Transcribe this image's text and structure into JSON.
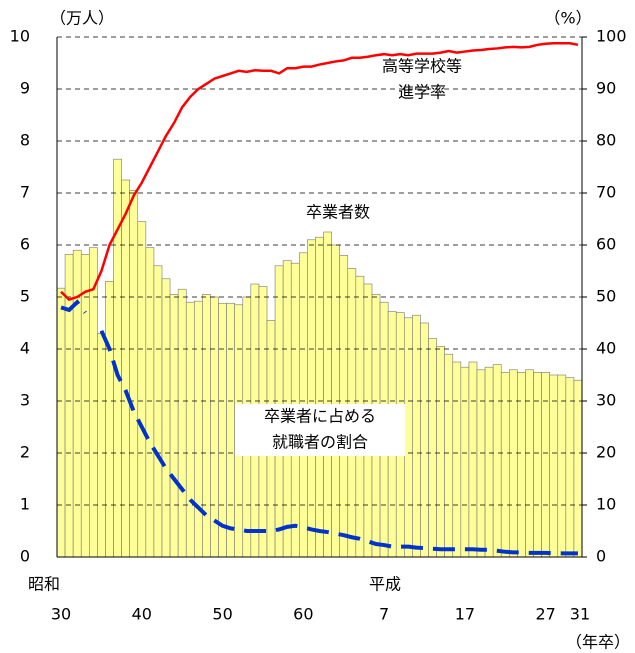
{
  "chart_data": {
    "type": "bar",
    "categories": [
      "30",
      null,
      null,
      null,
      null,
      null,
      null,
      null,
      null,
      null,
      "40",
      null,
      null,
      null,
      null,
      null,
      null,
      null,
      null,
      null,
      "50",
      null,
      null,
      null,
      null,
      null,
      null,
      null,
      null,
      null,
      "60",
      null,
      null,
      null,
      null,
      null,
      null,
      null,
      null,
      null,
      "7",
      null,
      null,
      null,
      null,
      null,
      null,
      null,
      null,
      null,
      "17",
      null,
      null,
      null,
      null,
      null,
      null,
      null,
      null,
      null,
      "27",
      null,
      null,
      null,
      "31"
    ],
    "era_labels": [
      "昭和",
      "平成"
    ],
    "y_unit": "（万人）",
    "y2_unit": "（%）",
    "x_unit": "（年卒）",
    "series": [
      {
        "name": "卒業者数",
        "color": "#ffff99",
        "values": [
          5.17,
          5.82,
          5.9,
          5.82,
          5.95,
          4.3,
          5.3,
          7.65,
          7.25,
          7.05,
          6.45,
          5.95,
          5.6,
          5.35,
          5.05,
          5.15,
          4.9,
          4.92,
          5.05,
          5.0,
          4.88,
          4.88,
          4.85,
          5.0,
          5.25,
          5.2,
          4.55,
          5.6,
          5.7,
          5.65,
          5.85,
          6.1,
          6.15,
          6.25,
          6.0,
          5.8,
          5.55,
          5.4,
          5.25,
          5.05,
          4.9,
          4.72,
          4.7,
          4.6,
          4.65,
          4.5,
          4.2,
          4.05,
          3.9,
          3.75,
          3.65,
          3.75,
          3.6,
          3.65,
          3.7,
          3.55,
          3.6,
          3.55,
          3.6,
          3.55,
          3.55,
          3.5,
          3.5,
          3.45,
          3.4
        ]
      },
      {
        "name": "高等学校等進学率",
        "type": "line",
        "axis": "y2",
        "color": "#ff0000",
        "values": [
          51,
          49.5,
          50,
          51,
          51.5,
          55,
          60,
          63,
          66,
          69.5,
          72,
          75,
          78,
          81,
          83.5,
          86.5,
          88.5,
          90,
          91,
          92,
          92.5,
          93,
          93.5,
          93.3,
          93.6,
          93.5,
          93.5,
          93,
          94,
          94,
          94.3,
          94.3,
          94.7,
          95,
          95.3,
          95.5,
          96,
          96,
          96.2,
          96.5,
          96.7,
          96.5,
          96.7,
          96.5,
          96.8,
          96.8,
          96.8,
          97,
          97.3,
          97,
          97.2,
          97.4,
          97.5,
          97.7,
          97.8,
          98,
          98.1,
          98,
          98.1,
          98.5,
          98.7,
          98.8,
          98.8,
          98.8,
          98.5
        ]
      },
      {
        "name": "卒業者に占める就職者の割合",
        "type": "line",
        "axis": "y2",
        "color": "#0033cc",
        "dashed": true,
        "values": [
          48,
          47.5,
          49,
          47,
          null,
          43.5,
          40,
          35,
          32,
          28,
          25,
          22,
          19.5,
          17,
          15,
          13,
          11,
          9.5,
          8,
          7,
          6,
          5.5,
          5.3,
          5,
          5,
          5,
          5,
          5.3,
          5.8,
          6,
          5.7,
          5.3,
          5,
          4.8,
          4.5,
          4.2,
          3.8,
          3.5,
          3,
          2.5,
          2.3,
          2,
          2,
          2,
          1.8,
          1.7,
          1.6,
          1.5,
          1.5,
          1.5,
          1.5,
          1.5,
          1.4,
          1.4,
          1.2,
          1.0,
          0.9,
          0.9,
          0.8,
          0.8,
          0.8,
          0.7,
          0.7,
          0.7,
          0.7
        ]
      }
    ],
    "annotations": [
      [
        "高等学校等",
        "進学率"
      ],
      [
        "卒業者数"
      ],
      [
        "卒業者に占める",
        "就職者の割合"
      ]
    ],
    "ylim": [
      0,
      10
    ],
    "yticks": [
      0,
      1,
      2,
      3,
      4,
      5,
      6,
      7,
      8,
      9,
      10
    ],
    "y2lim": [
      0,
      100
    ],
    "y2ticks": [
      0,
      10,
      20,
      30,
      40,
      50,
      60,
      70,
      80,
      90,
      100
    ],
    "grid": true
  }
}
